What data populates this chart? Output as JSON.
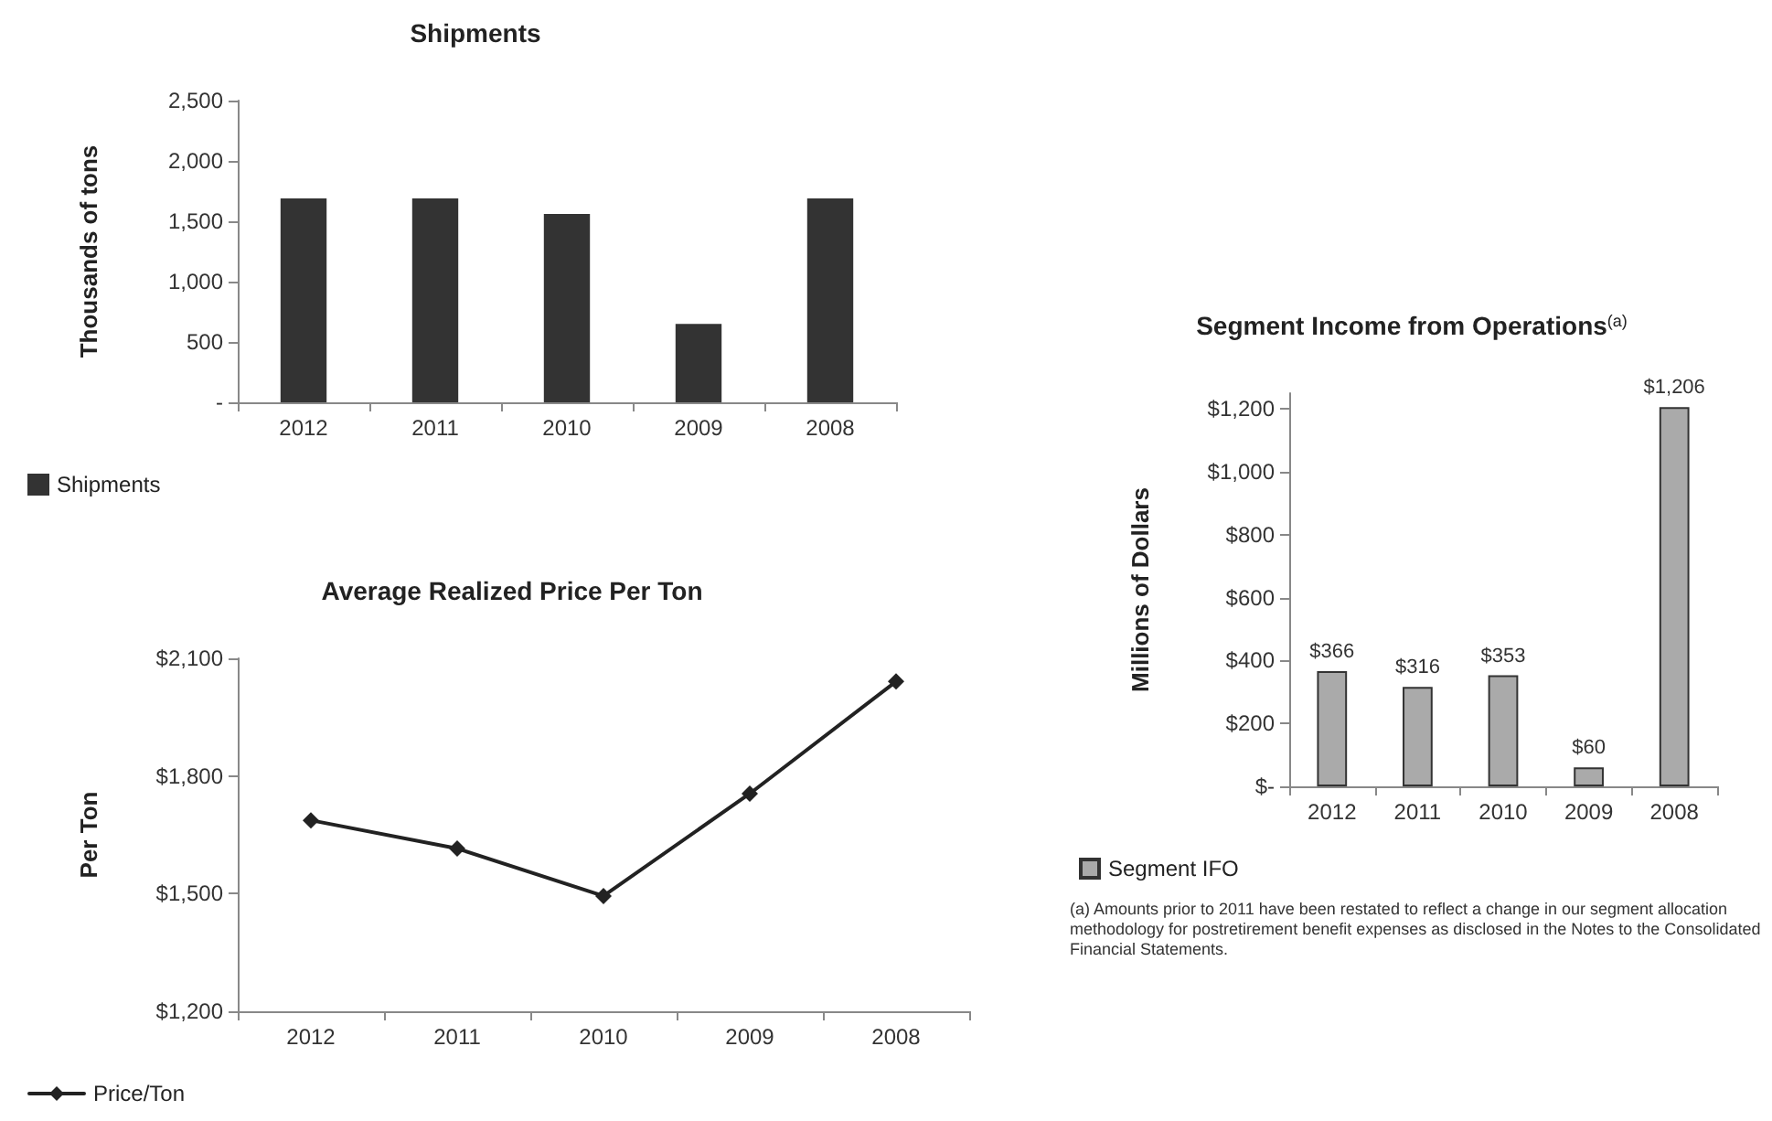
{
  "chart_data": [
    {
      "type": "bar",
      "title": "Shipments",
      "ylabel": "Thousands of tons",
      "categories": [
        "2012",
        "2011",
        "2010",
        "2009",
        "2008"
      ],
      "series": [
        {
          "name": "Shipments",
          "color": "#333333",
          "values": [
            1690,
            1690,
            1560,
            650,
            1690
          ]
        }
      ],
      "ylim": [
        0,
        2500
      ],
      "yticks": [
        {
          "value": 0,
          "label": "-"
        },
        {
          "value": 500,
          "label": "500"
        },
        {
          "value": 1000,
          "label": "1,000"
        },
        {
          "value": 1500,
          "label": "1,500"
        },
        {
          "value": 2000,
          "label": "2,000"
        },
        {
          "value": 2500,
          "label": "2,500"
        }
      ],
      "legend": "bottom left",
      "grid": false
    },
    {
      "type": "line",
      "title": "Average Realized Price Per Ton",
      "ylabel": "Per Ton",
      "categories": [
        "2012",
        "2011",
        "2010",
        "2009",
        "2008"
      ],
      "series": [
        {
          "name": "Price/Ton",
          "color": "#222222",
          "values": [
            1687,
            1615,
            1494,
            1755,
            2041
          ]
        }
      ],
      "ylim": [
        1200,
        2100
      ],
      "yticks": [
        {
          "value": 1200,
          "label": "$1,200"
        },
        {
          "value": 1500,
          "label": "$1,500"
        },
        {
          "value": 1800,
          "label": "$1,800"
        },
        {
          "value": 2100,
          "label": "$2,100"
        }
      ],
      "marker": "diamond",
      "line_style": "solid",
      "legend": "bottom left",
      "grid": false
    },
    {
      "type": "bar",
      "title": "Segment Income from Operations$^{(a)}$",
      "ylabel": "Millions of Dollars",
      "categories": [
        "2012",
        "2011",
        "2010",
        "2009",
        "2008"
      ],
      "series": [
        {
          "name": "Segment IFO",
          "color": "#aaaaaa",
          "values": [
            366,
            316,
            353,
            60,
            1206
          ],
          "value_labels": [
            "$366",
            "$316",
            "$353",
            "$60",
            "$1,206"
          ]
        }
      ],
      "ylim": [
        0,
        1250
      ],
      "yticks": [
        {
          "value": 0,
          "label": "$-"
        },
        {
          "value": 200,
          "label": "$200"
        },
        {
          "value": 400,
          "label": "$400"
        },
        {
          "value": 600,
          "label": "$600"
        },
        {
          "value": 800,
          "label": "$800"
        },
        {
          "value": 1000,
          "label": "$1,000"
        },
        {
          "value": 1200,
          "label": "$1,200"
        }
      ],
      "legend": "bottom left",
      "grid": false,
      "annotations": [
        "(a) Amounts prior to 2011 have been restated to reflect a change in our segment allocation methodology for postretirement benefit expenses as disclosed in the Notes to the Consolidated Financial Statements."
      ]
    }
  ]
}
